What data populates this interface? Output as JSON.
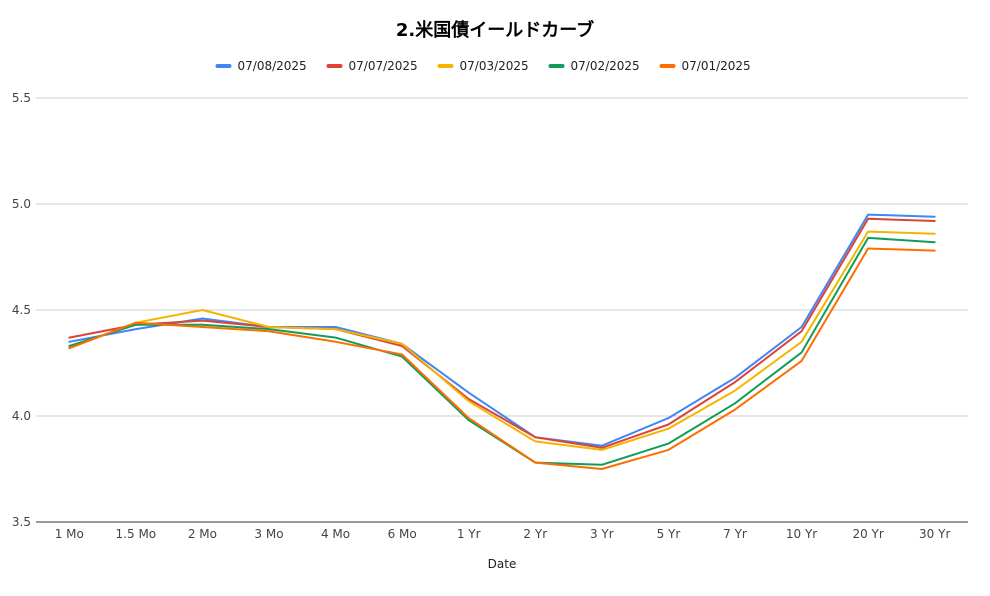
{
  "chart_data": {
    "type": "line",
    "title": "2.米国債イールドカーブ",
    "xlabel": "Date",
    "ylabel": "",
    "ylim": [
      3.5,
      5.5
    ],
    "yticks": [
      "3.5",
      "4.0",
      "4.5",
      "5.0",
      "5.5"
    ],
    "grid": true,
    "legend_position": "top",
    "categories": [
      "1 Mo",
      "1.5 Mo",
      "2 Mo",
      "3 Mo",
      "4 Mo",
      "6 Mo",
      "1 Yr",
      "2 Yr",
      "3 Yr",
      "5 Yr",
      "7 Yr",
      "10 Yr",
      "20 Yr",
      "30 Yr"
    ],
    "series": [
      {
        "name": "07/08/2025",
        "color": "#4285f4",
        "values": [
          4.35,
          4.41,
          4.46,
          4.42,
          4.42,
          4.34,
          4.11,
          3.9,
          3.86,
          3.99,
          4.18,
          4.42,
          4.95,
          4.94
        ]
      },
      {
        "name": "07/07/2025",
        "color": "#db4437",
        "values": [
          4.37,
          4.43,
          4.45,
          4.42,
          4.41,
          4.33,
          4.08,
          3.9,
          3.85,
          3.96,
          4.16,
          4.4,
          4.93,
          4.92
        ]
      },
      {
        "name": "07/03/2025",
        "color": "#f4b400",
        "values": [
          4.32,
          4.44,
          4.5,
          4.42,
          4.41,
          4.34,
          4.07,
          3.88,
          3.84,
          3.94,
          4.12,
          4.35,
          4.87,
          4.86
        ]
      },
      {
        "name": "07/02/2025",
        "color": "#0f9d58",
        "values": [
          4.33,
          4.43,
          4.43,
          4.41,
          4.37,
          4.28,
          3.98,
          3.78,
          3.77,
          3.87,
          4.06,
          4.3,
          4.84,
          4.82
        ]
      },
      {
        "name": "07/01/2025",
        "color": "#ff6d01",
        "values": [
          4.32,
          4.44,
          4.42,
          4.4,
          4.35,
          4.29,
          3.99,
          3.78,
          3.75,
          3.84,
          4.03,
          4.26,
          4.79,
          4.78
        ]
      }
    ]
  }
}
